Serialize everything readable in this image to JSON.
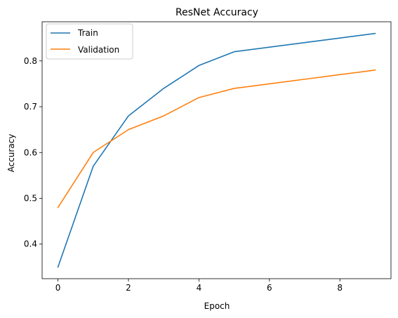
{
  "chart_data": {
    "type": "line",
    "title": "ResNet Accuracy",
    "xlabel": "Epoch",
    "ylabel": "Accuracy",
    "xlim": [
      -0.45,
      9.45
    ],
    "ylim": [
      0.3245,
      0.8855
    ],
    "xticks": [
      0,
      2,
      4,
      6,
      8
    ],
    "xtick_labels": [
      "0",
      "2",
      "4",
      "6",
      "8"
    ],
    "yticks": [
      0.4,
      0.5,
      0.6,
      0.7,
      0.8
    ],
    "ytick_labels": [
      "0.4",
      "0.5",
      "0.6",
      "0.7",
      "0.8"
    ],
    "grid": false,
    "legend_position": "top-left",
    "x": [
      0,
      1,
      2,
      3,
      4,
      5,
      6,
      7,
      8,
      9
    ],
    "series": [
      {
        "name": "Train",
        "color": "#1f77b4",
        "values": [
          0.35,
          0.57,
          0.68,
          0.74,
          0.79,
          0.82,
          0.83,
          0.84,
          0.85,
          0.86
        ]
      },
      {
        "name": "Validation",
        "color": "#ff7f0e",
        "values": [
          0.48,
          0.6,
          0.65,
          0.68,
          0.72,
          0.74,
          0.75,
          0.76,
          0.77,
          0.78
        ]
      }
    ]
  }
}
